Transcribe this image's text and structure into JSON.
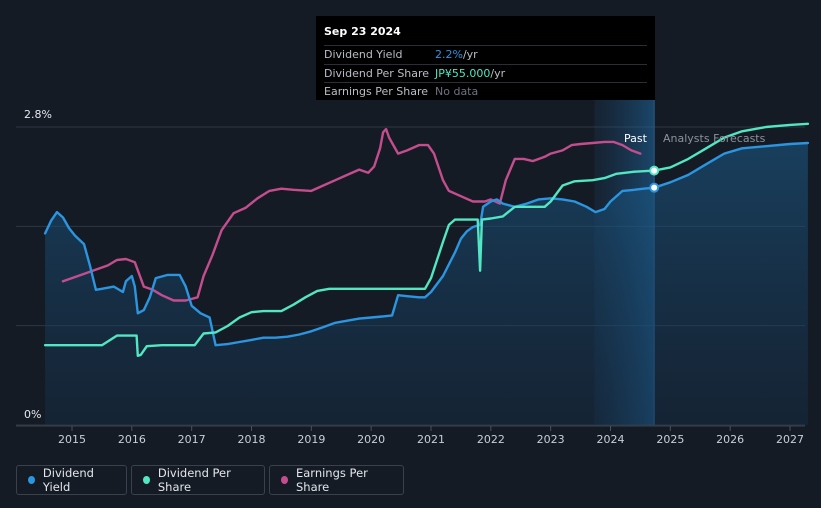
{
  "tooltip": {
    "date": "Sep 23 2024",
    "rows": [
      {
        "label": "Dividend Yield",
        "value": "2.2%",
        "unit": " /yr",
        "color": "#2c95e0"
      },
      {
        "label": "Dividend Per Share",
        "value": "JP¥55.000",
        "unit": " /yr",
        "color": "#52e6c2"
      },
      {
        "label": "Earnings Per Share",
        "value": "No data",
        "unit": "",
        "color": "#6d7280"
      }
    ]
  },
  "regions": {
    "past": "Past",
    "forecast": "Analysts Forecasts"
  },
  "legend": [
    {
      "label": "Dividend Yield",
      "color": "#2c95e0"
    },
    {
      "label": "Dividend Per Share",
      "color": "#52e6c2"
    },
    {
      "label": "Earnings Per Share",
      "color": "#c44d8e"
    }
  ],
  "colors": {
    "background": "#151b25",
    "dividend_yield": "#2c95e0",
    "dividend_per_share": "#52e6c2",
    "earnings_per_share": "#c44d8e"
  },
  "chart_data": {
    "type": "line",
    "ylabels": [
      "2.8%",
      "0%"
    ],
    "ylim": [
      0,
      2.8
    ],
    "xlim": [
      2014.6,
      2027.3
    ],
    "xticks": [
      "2015",
      "2016",
      "2017",
      "2018",
      "2019",
      "2020",
      "2021",
      "2022",
      "2023",
      "2024",
      "2025",
      "2026",
      "2027"
    ],
    "past_region": [
      2023.73,
      2024.73
    ],
    "current_date": 2024.73,
    "grid": true,
    "legend_position": "bottom",
    "series": [
      {
        "name": "Dividend Yield",
        "unit": "%",
        "points": [
          [
            2014.55,
            1.8
          ],
          [
            2014.65,
            1.92
          ],
          [
            2014.75,
            2.0
          ],
          [
            2014.85,
            1.95
          ],
          [
            2014.95,
            1.85
          ],
          [
            2015.05,
            1.78
          ],
          [
            2015.2,
            1.7
          ],
          [
            2015.3,
            1.5
          ],
          [
            2015.4,
            1.27
          ],
          [
            2015.5,
            1.28
          ],
          [
            2015.7,
            1.3
          ],
          [
            2015.85,
            1.25
          ],
          [
            2015.9,
            1.35
          ],
          [
            2016.0,
            1.4
          ],
          [
            2016.05,
            1.3
          ],
          [
            2016.1,
            1.05
          ],
          [
            2016.2,
            1.08
          ],
          [
            2016.3,
            1.2
          ],
          [
            2016.4,
            1.38
          ],
          [
            2016.6,
            1.41
          ],
          [
            2016.8,
            1.41
          ],
          [
            2016.9,
            1.3
          ],
          [
            2017.0,
            1.12
          ],
          [
            2017.15,
            1.05
          ],
          [
            2017.3,
            1.01
          ],
          [
            2017.4,
            0.75
          ],
          [
            2017.6,
            0.76
          ],
          [
            2017.8,
            0.78
          ],
          [
            2018.0,
            0.8
          ],
          [
            2018.2,
            0.82
          ],
          [
            2018.4,
            0.82
          ],
          [
            2018.6,
            0.83
          ],
          [
            2018.8,
            0.85
          ],
          [
            2019.0,
            0.88
          ],
          [
            2019.2,
            0.92
          ],
          [
            2019.4,
            0.96
          ],
          [
            2019.6,
            0.98
          ],
          [
            2019.8,
            1.0
          ],
          [
            2020.0,
            1.01
          ],
          [
            2020.2,
            1.02
          ],
          [
            2020.35,
            1.03
          ],
          [
            2020.45,
            1.22
          ],
          [
            2020.6,
            1.21
          ],
          [
            2020.8,
            1.2
          ],
          [
            2020.9,
            1.2
          ],
          [
            2021.0,
            1.25
          ],
          [
            2021.2,
            1.4
          ],
          [
            2021.4,
            1.62
          ],
          [
            2021.5,
            1.75
          ],
          [
            2021.6,
            1.82
          ],
          [
            2021.7,
            1.86
          ],
          [
            2021.82,
            1.88
          ],
          [
            2021.87,
            2.05
          ],
          [
            2022.0,
            2.1
          ],
          [
            2022.1,
            2.12
          ],
          [
            2022.2,
            2.08
          ],
          [
            2022.4,
            2.05
          ],
          [
            2022.6,
            2.08
          ],
          [
            2022.8,
            2.12
          ],
          [
            2023.0,
            2.13
          ],
          [
            2023.2,
            2.12
          ],
          [
            2023.4,
            2.1
          ],
          [
            2023.6,
            2.05
          ],
          [
            2023.75,
            2.0
          ],
          [
            2023.9,
            2.03
          ],
          [
            2024.0,
            2.1
          ],
          [
            2024.2,
            2.2
          ],
          [
            2024.4,
            2.21
          ],
          [
            2024.55,
            2.22
          ],
          [
            2024.73,
            2.23
          ],
          [
            2025.0,
            2.28
          ],
          [
            2025.3,
            2.35
          ],
          [
            2025.6,
            2.45
          ],
          [
            2025.9,
            2.55
          ],
          [
            2026.2,
            2.6
          ],
          [
            2026.6,
            2.62
          ],
          [
            2027.0,
            2.64
          ],
          [
            2027.3,
            2.65
          ]
        ]
      },
      {
        "name": "Dividend Per Share",
        "unit": "JP¥",
        "points": [
          [
            2014.55,
            0.75
          ],
          [
            2015.0,
            0.75
          ],
          [
            2015.3,
            0.75
          ],
          [
            2015.5,
            0.75
          ],
          [
            2015.75,
            0.84
          ],
          [
            2015.9,
            0.84
          ],
          [
            2016.0,
            0.84
          ],
          [
            2016.08,
            0.84
          ],
          [
            2016.1,
            0.65
          ],
          [
            2016.15,
            0.66
          ],
          [
            2016.25,
            0.74
          ],
          [
            2016.5,
            0.75
          ],
          [
            2016.75,
            0.75
          ],
          [
            2017.05,
            0.75
          ],
          [
            2017.2,
            0.86
          ],
          [
            2017.4,
            0.87
          ],
          [
            2017.6,
            0.93
          ],
          [
            2017.8,
            1.01
          ],
          [
            2018.0,
            1.06
          ],
          [
            2018.2,
            1.07
          ],
          [
            2018.5,
            1.07
          ],
          [
            2018.7,
            1.13
          ],
          [
            2018.9,
            1.2
          ],
          [
            2019.1,
            1.26
          ],
          [
            2019.3,
            1.28
          ],
          [
            2019.6,
            1.28
          ],
          [
            2019.9,
            1.28
          ],
          [
            2020.2,
            1.28
          ],
          [
            2020.5,
            1.28
          ],
          [
            2020.9,
            1.28
          ],
          [
            2021.0,
            1.38
          ],
          [
            2021.1,
            1.55
          ],
          [
            2021.2,
            1.72
          ],
          [
            2021.3,
            1.88
          ],
          [
            2021.4,
            1.93
          ],
          [
            2021.6,
            1.93
          ],
          [
            2021.78,
            1.93
          ],
          [
            2021.82,
            1.45
          ],
          [
            2021.85,
            1.93
          ],
          [
            2022.0,
            1.94
          ],
          [
            2022.2,
            1.96
          ],
          [
            2022.4,
            2.05
          ],
          [
            2022.7,
            2.05
          ],
          [
            2022.9,
            2.05
          ],
          [
            2023.0,
            2.1
          ],
          [
            2023.2,
            2.25
          ],
          [
            2023.4,
            2.29
          ],
          [
            2023.7,
            2.3
          ],
          [
            2023.9,
            2.32
          ],
          [
            2024.1,
            2.36
          ],
          [
            2024.4,
            2.38
          ],
          [
            2024.73,
            2.39
          ],
          [
            2025.0,
            2.42
          ],
          [
            2025.3,
            2.5
          ],
          [
            2025.6,
            2.6
          ],
          [
            2025.9,
            2.7
          ],
          [
            2026.2,
            2.76
          ],
          [
            2026.6,
            2.8
          ],
          [
            2027.0,
            2.82
          ],
          [
            2027.3,
            2.83
          ]
        ]
      },
      {
        "name": "Earnings Per Share",
        "unit": "JP¥",
        "points": [
          [
            2014.85,
            1.35
          ],
          [
            2015.1,
            1.4
          ],
          [
            2015.4,
            1.46
          ],
          [
            2015.6,
            1.5
          ],
          [
            2015.75,
            1.55
          ],
          [
            2015.9,
            1.56
          ],
          [
            2016.05,
            1.53
          ],
          [
            2016.2,
            1.3
          ],
          [
            2016.35,
            1.27
          ],
          [
            2016.5,
            1.22
          ],
          [
            2016.7,
            1.17
          ],
          [
            2016.9,
            1.17
          ],
          [
            2017.1,
            1.2
          ],
          [
            2017.2,
            1.4
          ],
          [
            2017.35,
            1.6
          ],
          [
            2017.5,
            1.83
          ],
          [
            2017.7,
            1.99
          ],
          [
            2017.9,
            2.04
          ],
          [
            2018.1,
            2.13
          ],
          [
            2018.3,
            2.2
          ],
          [
            2018.5,
            2.22
          ],
          [
            2018.7,
            2.21
          ],
          [
            2019.0,
            2.2
          ],
          [
            2019.2,
            2.25
          ],
          [
            2019.4,
            2.3
          ],
          [
            2019.6,
            2.35
          ],
          [
            2019.8,
            2.4
          ],
          [
            2019.95,
            2.37
          ],
          [
            2020.05,
            2.43
          ],
          [
            2020.15,
            2.6
          ],
          [
            2020.2,
            2.75
          ],
          [
            2020.25,
            2.78
          ],
          [
            2020.3,
            2.7
          ],
          [
            2020.45,
            2.55
          ],
          [
            2020.6,
            2.58
          ],
          [
            2020.8,
            2.63
          ],
          [
            2020.95,
            2.63
          ],
          [
            2021.05,
            2.55
          ],
          [
            2021.2,
            2.3
          ],
          [
            2021.3,
            2.2
          ],
          [
            2021.5,
            2.15
          ],
          [
            2021.7,
            2.1
          ],
          [
            2021.9,
            2.1
          ],
          [
            2022.0,
            2.12
          ],
          [
            2022.15,
            2.08
          ],
          [
            2022.25,
            2.3
          ],
          [
            2022.4,
            2.5
          ],
          [
            2022.55,
            2.5
          ],
          [
            2022.7,
            2.48
          ],
          [
            2022.9,
            2.52
          ],
          [
            2023.0,
            2.55
          ],
          [
            2023.2,
            2.58
          ],
          [
            2023.35,
            2.63
          ],
          [
            2023.5,
            2.64
          ],
          [
            2023.7,
            2.65
          ],
          [
            2023.9,
            2.66
          ],
          [
            2024.05,
            2.66
          ],
          [
            2024.2,
            2.63
          ],
          [
            2024.35,
            2.58
          ],
          [
            2024.5,
            2.55
          ]
        ]
      }
    ],
    "markers": [
      {
        "series": "Dividend Per Share",
        "x": 2024.73,
        "y": 2.39
      },
      {
        "series": "Dividend Yield",
        "x": 2024.73,
        "y": 2.23
      }
    ]
  }
}
